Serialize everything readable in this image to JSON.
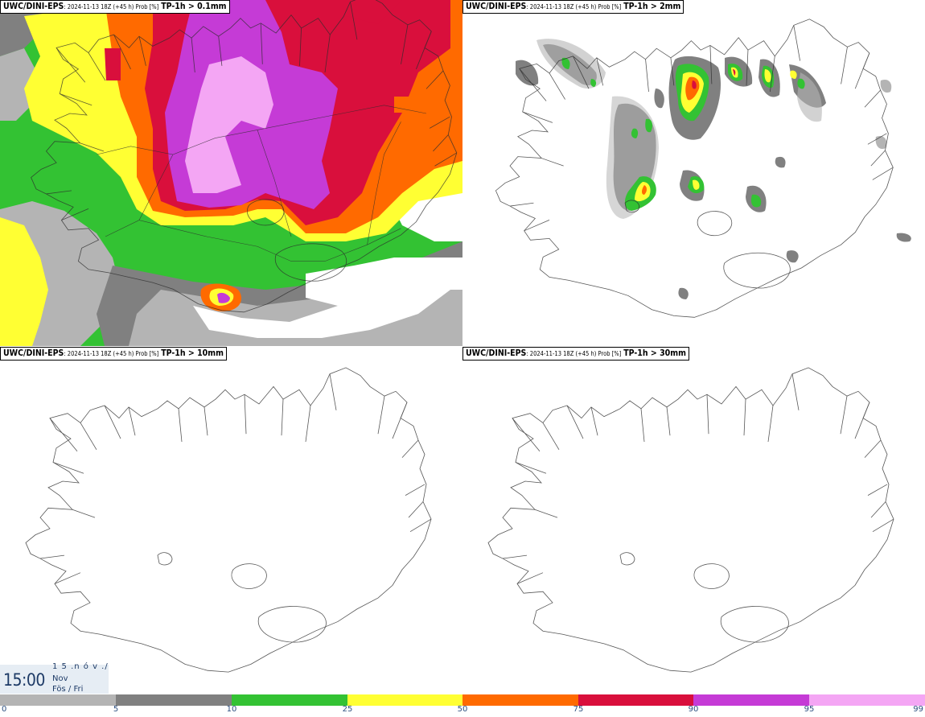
{
  "panels": [
    {
      "model": "UWC/DINI-EPS",
      "meta": ": 2024-11-13 18Z (+45 h) Prob [%]",
      "variable": "TP-1h > 0.1mm"
    },
    {
      "model": "UWC/DINI-EPS",
      "meta": ": 2024-11-13 18Z (+45 h) Prob [%]",
      "variable": "TP-1h > 2mm"
    },
    {
      "model": "UWC/DINI-EPS",
      "meta": ": 2024-11-13 18Z (+45 h) Prob [%]",
      "variable": "TP-1h > 10mm"
    },
    {
      "model": "UWC/DINI-EPS",
      "meta": ": 2024-11-13 18Z (+45 h) Prob [%]",
      "variable": "TP-1h > 30mm"
    }
  ],
  "valid_time": {
    "clock": "15:00",
    "date_line": "1 5 .n ó v ./",
    "month": "Nov",
    "weekday": "Fös / Fri"
  },
  "colorbar": {
    "ticks": [
      "0",
      "5",
      "10",
      "25",
      "50",
      "75",
      "90",
      "95",
      "99"
    ],
    "colors": [
      "#ffffff",
      "#b4b4b4",
      "#808080",
      "#33c233",
      "#ffff33",
      "#ff6a00",
      "#d90f3c",
      "#c53bd6",
      "#f4a6f4"
    ]
  },
  "colors": {
    "coastline": "#2c2c2c",
    "time_text": "#1d3a66",
    "time_bg": "#e6edf4"
  }
}
